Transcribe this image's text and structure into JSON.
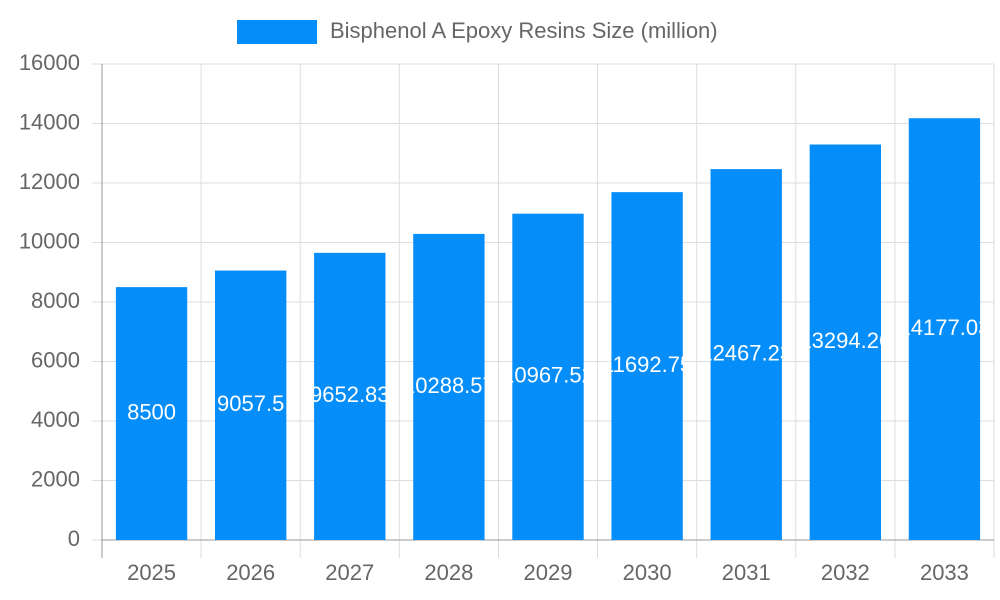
{
  "chart_data": {
    "type": "bar",
    "categories": [
      "2025",
      "2026",
      "2027",
      "2028",
      "2029",
      "2030",
      "2031",
      "2032",
      "2033"
    ],
    "series": [
      {
        "name": "Bisphenol A Epoxy Resins Size (million)",
        "color": "#058df9",
        "values": [
          8500,
          9057.5,
          9652.83,
          10288.57,
          10967.52,
          11692.75,
          12467.23,
          13294.26,
          14177.03
        ]
      }
    ],
    "ylim": [
      0,
      16000
    ],
    "yticks": [
      0,
      2000,
      4000,
      6000,
      8000,
      10000,
      12000,
      14000,
      16000
    ],
    "grid": true
  }
}
